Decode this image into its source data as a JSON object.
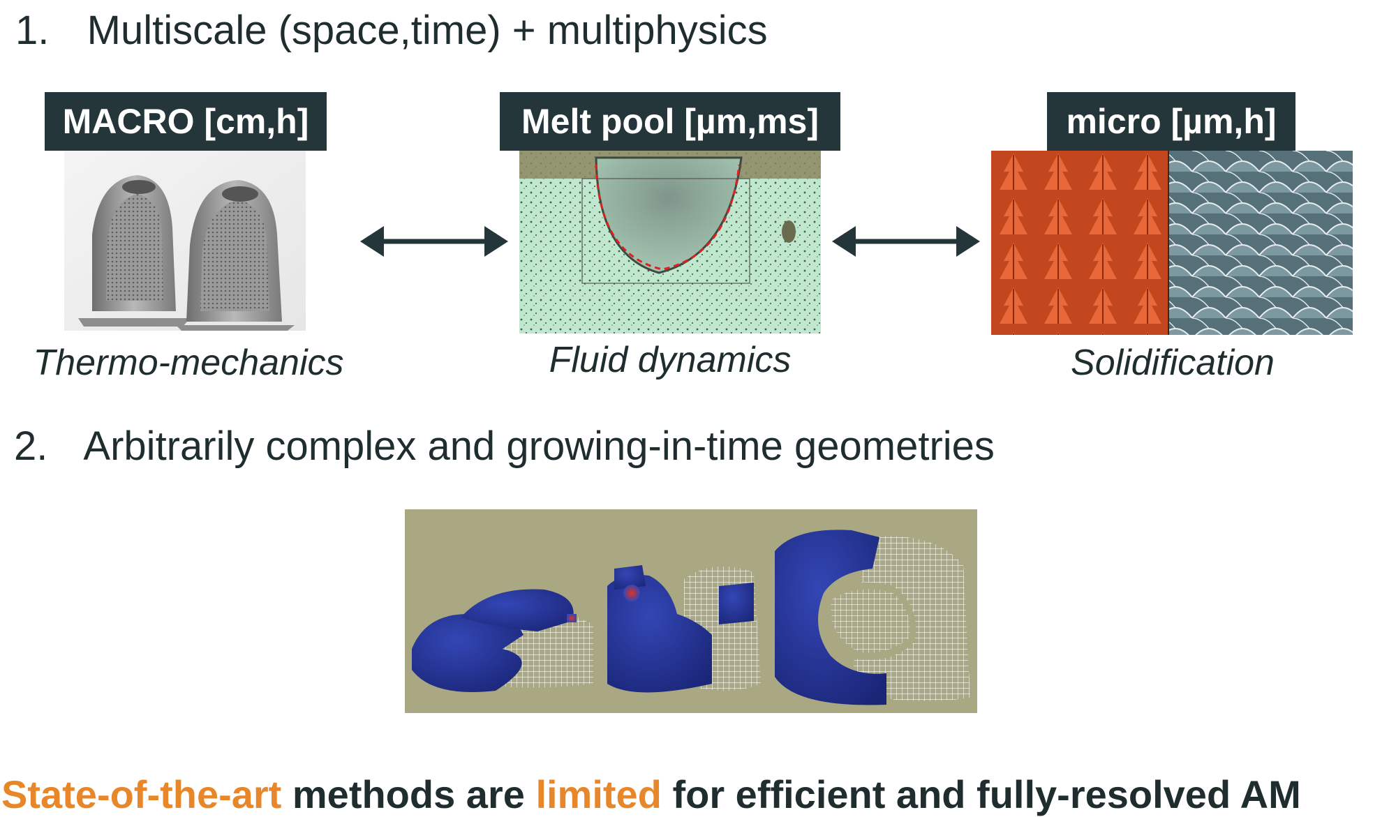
{
  "section1": {
    "number": "1.",
    "title": "Multiscale (space,time) + multiphysics"
  },
  "macro": {
    "tag": "MACRO [cm,h]",
    "caption": "Thermo-mechanics"
  },
  "meltpool": {
    "tag": "Melt pool [µm,ms]",
    "caption": "Fluid dynamics"
  },
  "micro": {
    "tag": "micro [µm,h]",
    "caption": "Solidification"
  },
  "section2": {
    "number": "2.",
    "title": "Arbitrarily complex and growing-in-time geometries"
  },
  "conclusion": {
    "part1": "State-of-the-art",
    "part2": " methods are ",
    "part3": "limited",
    "part4": " for efficient and fully-resolved AM"
  },
  "colors": {
    "accent": "#e8862a",
    "dark": "#1f2d2f",
    "tag_bg": "#24363a",
    "sim_bg": "#a9a882",
    "part_blue": "#24349a"
  }
}
